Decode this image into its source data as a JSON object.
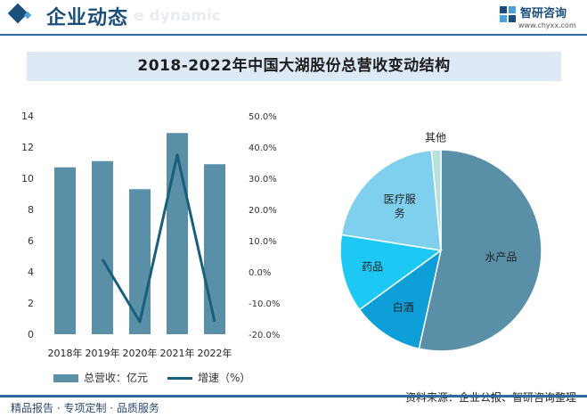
{
  "header": {
    "section_title": "企业动态",
    "section_subtitle": "e dynamic",
    "brand_name": "智研咨询",
    "brand_url": "www.chyxx.com"
  },
  "title": "2018-2022年中国大湖股份总营收变动结构",
  "footer": {
    "left": "精品报告 · 专项定制 · 品质服务",
    "source": "资料来源：企业公报、智研咨询整理"
  },
  "colors": {
    "bar": "#5a8fa8",
    "line": "#1a5f7a",
    "accent": "#1a4f7c"
  },
  "chart_data": [
    {
      "type": "bar",
      "categories": [
        "2018年",
        "2019年",
        "2020年",
        "2021年",
        "2022年"
      ],
      "series": [
        {
          "name": "总营收：亿元",
          "type": "bar",
          "axis": "left",
          "values": [
            10.7,
            11.1,
            9.3,
            12.9,
            10.9
          ]
        },
        {
          "name": "增速（%）",
          "type": "line",
          "axis": "right",
          "values": [
            null,
            4.0,
            -16.0,
            37.5,
            -16.0
          ]
        }
      ],
      "y_left": {
        "min": 0,
        "max": 14,
        "ticks": [
          0,
          2,
          4,
          6,
          8,
          10,
          12,
          14
        ]
      },
      "y_right": {
        "min": -20,
        "max": 50,
        "ticks": [
          "-20.0%",
          "-10.0%",
          "0.0%",
          "10.0%",
          "20.0%",
          "30.0%",
          "40.0%",
          "50.0%"
        ]
      },
      "legend": "bottom"
    },
    {
      "type": "pie",
      "slices": [
        {
          "label": "水产品",
          "value": 53.5,
          "color": "#5a8fa8"
        },
        {
          "label": "白酒",
          "value": 11.5,
          "color": "#0f9fd8"
        },
        {
          "label": "药品",
          "value": 12.5,
          "color": "#1ec8f5"
        },
        {
          "label": "医疗服务",
          "value": 21.0,
          "color": "#7fd0ef"
        },
        {
          "label": "其他",
          "value": 1.5,
          "color": "#b8e0dc"
        }
      ]
    }
  ]
}
